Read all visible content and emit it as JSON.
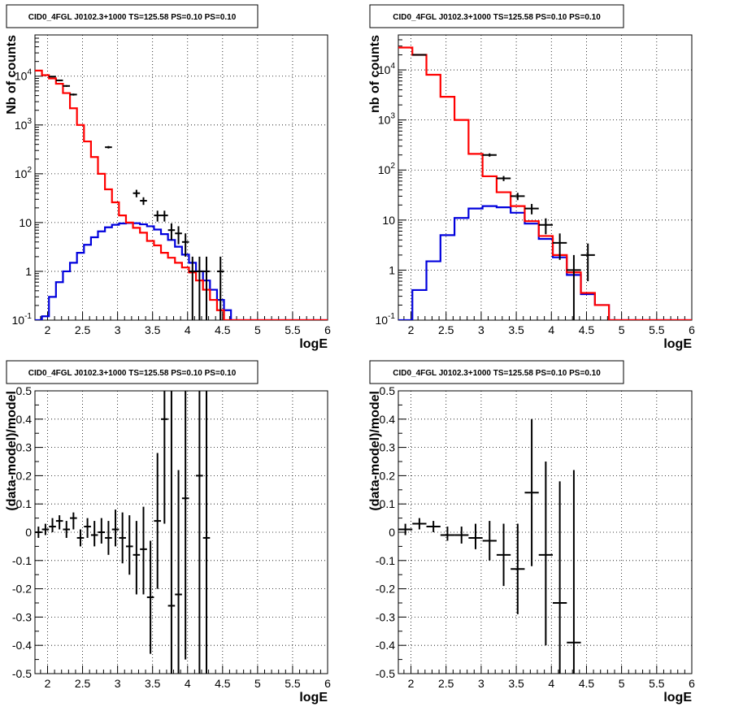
{
  "chart_data": [
    {
      "type": "step",
      "title": "CID0_4FGL J0102.3+1000 TS=125.58 PS=0.10 PS=0.10",
      "xlabel": "logE",
      "ylabel": "Nb of counts",
      "xlim": [
        1.82,
        6.0
      ],
      "ylim": [
        0.1,
        70000
      ],
      "yscale": "log",
      "grid": true,
      "x_ticks": [
        "2",
        "2.5",
        "3",
        "3.5",
        "4",
        "4.5",
        "5",
        "5.5",
        "6"
      ],
      "y_ticks": [
        [
          "0.1",
          0.1,
          "10",
          "-1"
        ],
        [
          "1",
          1
        ],
        [
          "10",
          10
        ],
        [
          "10",
          100,
          "10",
          "2"
        ],
        [
          "10",
          1000,
          "10",
          "3"
        ],
        [
          "10",
          10000,
          "10",
          "4"
        ]
      ],
      "bin_edges": [
        1.82,
        1.92,
        2.02,
        2.12,
        2.22,
        2.32,
        2.42,
        2.52,
        2.62,
        2.72,
        2.82,
        2.92,
        3.02,
        3.12,
        3.22,
        3.32,
        3.42,
        3.52,
        3.62,
        3.72,
        3.82,
        3.92,
        4.02,
        4.12,
        4.22,
        4.32,
        4.42,
        4.52,
        4.62,
        4.72,
        4.82,
        4.92,
        5.02,
        5.12,
        5.22,
        5.32,
        5.42,
        5.52,
        5.62,
        5.72,
        5.82,
        5.92,
        6.0
      ],
      "series": [
        {
          "color": "#ff0000",
          "values": [
            13000,
            10500,
            9000,
            7000,
            4500,
            2200,
            1000,
            460,
            220,
            100,
            48,
            26,
            14,
            10,
            7.8,
            6.2,
            4.2,
            3.4,
            2.4,
            1.9,
            1.5,
            1.2,
            0.95,
            0.65,
            0.42,
            0.26,
            0.16,
            0.1,
            0.08,
            0.08,
            0.08,
            0.08,
            0.08,
            0.08,
            0.08,
            0.08,
            0.08,
            0.08,
            0.08,
            0.08,
            0.08,
            0.08
          ]
        },
        {
          "color": "#0000dd",
          "values": [
            0.08,
            0.12,
            0.3,
            0.6,
            1.0,
            1.5,
            2.4,
            3.5,
            5.0,
            6.6,
            8.0,
            9.0,
            9.6,
            9.8,
            9.7,
            9.2,
            8.4,
            7.2,
            5.8,
            4.4,
            3.2,
            2.2,
            1.5,
            1.0,
            0.65,
            0.42,
            0.26,
            0.16,
            0.1,
            0.08,
            0.08,
            0.08,
            0.08,
            0.08,
            0.08,
            0.08,
            0.08,
            0.08,
            0.08,
            0.08,
            0.08,
            0.08
          ]
        }
      ],
      "points": [
        {
          "x": 2.07,
          "y": 9800,
          "xerr": 0.05,
          "ylo": 9500,
          "yhi": 10100
        },
        {
          "x": 2.17,
          "y": 8200,
          "xerr": 0.05,
          "ylo": 7900,
          "yhi": 8500
        },
        {
          "x": 2.27,
          "y": 6300,
          "xerr": 0.05,
          "ylo": 6050,
          "yhi": 6550
        },
        {
          "x": 2.37,
          "y": 4200,
          "xerr": 0.05,
          "ylo": 4000,
          "yhi": 4400
        },
        {
          "x": 2.87,
          "y": 350,
          "xerr": 0.05,
          "ylo": 330,
          "yhi": 370
        },
        {
          "x": 3.27,
          "y": 40,
          "xerr": 0.05,
          "ylo": 33,
          "yhi": 47
        },
        {
          "x": 3.37,
          "y": 28,
          "xerr": 0.05,
          "ylo": 23,
          "yhi": 33
        },
        {
          "x": 3.57,
          "y": 14,
          "xerr": 0.05,
          "ylo": 10.5,
          "yhi": 17.5
        },
        {
          "x": 3.67,
          "y": 14,
          "xerr": 0.05,
          "ylo": 10.5,
          "yhi": 17.5
        },
        {
          "x": 3.77,
          "y": 7,
          "xerr": 0.05,
          "ylo": 4.4,
          "yhi": 9.6
        },
        {
          "x": 3.87,
          "y": 6,
          "xerr": 0.05,
          "ylo": 3.6,
          "yhi": 8.4
        },
        {
          "x": 3.97,
          "y": 4,
          "xerr": 0.05,
          "ylo": 2.0,
          "yhi": 6.0
        },
        {
          "x": 4.07,
          "y": 1,
          "xerr": 0.05,
          "ylo": 0.01,
          "yhi": 2.0
        },
        {
          "x": 4.17,
          "y": 1,
          "xerr": 0.05,
          "ylo": 0.01,
          "yhi": 2.0
        },
        {
          "x": 4.27,
          "y": 1,
          "xerr": 0.05,
          "ylo": 0.01,
          "yhi": 2.0
        },
        {
          "x": 4.47,
          "y": 1,
          "xerr": 0.05,
          "ylo": 0.01,
          "yhi": 2.0
        }
      ]
    },
    {
      "type": "step",
      "title": "CID0_4FGL J0102.3+1000 TS=125.58 PS=0.10 PS=0.10",
      "xlabel": "logE",
      "ylabel": "nb of counts",
      "xlim": [
        1.82,
        6.0
      ],
      "ylim": [
        0.1,
        50000
      ],
      "yscale": "log",
      "grid": true,
      "x_ticks": [
        "2",
        "2.5",
        "3",
        "3.5",
        "4",
        "4.5",
        "5",
        "5.5",
        "6"
      ],
      "y_ticks": [
        [
          "0.1",
          0.1,
          "10",
          "-1"
        ],
        [
          "1",
          1
        ],
        [
          "10",
          10
        ],
        [
          "10",
          100,
          "10",
          "2"
        ],
        [
          "10",
          1000,
          "10",
          "3"
        ],
        [
          "10",
          10000,
          "10",
          "4"
        ]
      ],
      "bin_edges": [
        1.82,
        2.02,
        2.22,
        2.42,
        2.62,
        2.82,
        3.02,
        3.22,
        3.42,
        3.62,
        3.82,
        4.02,
        4.22,
        4.42,
        4.62,
        4.82,
        5.02,
        5.22,
        5.42,
        5.62,
        5.82,
        6.0
      ],
      "series": [
        {
          "color": "#ff0000",
          "values": [
            28000,
            20000,
            8000,
            2900,
            1000,
            210,
            75,
            36,
            19,
            9.5,
            4.8,
            2.0,
            0.9,
            0.35,
            0.2,
            0.08,
            0.08,
            0.08,
            0.08,
            0.08,
            0.08
          ]
        },
        {
          "color": "#0000dd",
          "values": [
            0.08,
            0.4,
            1.5,
            5.0,
            11,
            17,
            19,
            18,
            14,
            8.5,
            4.2,
            1.8,
            0.8,
            0.33,
            0.2,
            0.08,
            0.08,
            0.08,
            0.08,
            0.08,
            0.08
          ]
        }
      ],
      "points": [
        {
          "x": 2.12,
          "y": 20000,
          "xerr": 0.1,
          "ylo": 19500,
          "yhi": 20500
        },
        {
          "x": 3.12,
          "y": 200,
          "xerr": 0.1,
          "ylo": 185,
          "yhi": 215
        },
        {
          "x": 3.32,
          "y": 68,
          "xerr": 0.1,
          "ylo": 60,
          "yhi": 76
        },
        {
          "x": 3.52,
          "y": 30,
          "xerr": 0.1,
          "ylo": 25,
          "yhi": 35
        },
        {
          "x": 3.72,
          "y": 17,
          "xerr": 0.1,
          "ylo": 13,
          "yhi": 21
        },
        {
          "x": 3.92,
          "y": 8,
          "xerr": 0.1,
          "ylo": 5.2,
          "yhi": 10.8
        },
        {
          "x": 4.12,
          "y": 3.5,
          "xerr": 0.1,
          "ylo": 1.6,
          "yhi": 5.4
        },
        {
          "x": 4.32,
          "y": 1,
          "xerr": 0.1,
          "ylo": 0.01,
          "yhi": 2.0
        },
        {
          "x": 4.52,
          "y": 2,
          "xerr": 0.1,
          "ylo": 0.6,
          "yhi": 3.4
        }
      ]
    },
    {
      "type": "errorbar",
      "title": "CID0_4FGL J0102.3+1000 TS=125.58 PS=0.10 PS=0.10",
      "xlabel": "logE",
      "ylabel": "(data-model)/model",
      "xlim": [
        1.82,
        6.0
      ],
      "ylim": [
        -0.5,
        0.5
      ],
      "yscale": "linear",
      "grid": true,
      "x_ticks": [
        "2",
        "2.5",
        "3",
        "3.5",
        "4",
        "4.5",
        "5",
        "5.5",
        "6"
      ],
      "y_ticks": [
        "-0.5",
        "-0.4",
        "-0.3",
        "-0.2",
        "-0.1",
        "0",
        "0.1",
        "0.2",
        "0.3",
        "0.4",
        "0.5"
      ],
      "points": [
        {
          "x": 1.87,
          "y": 0.0,
          "xerr": 0.05,
          "ylo": -0.02,
          "yhi": 0.02
        },
        {
          "x": 1.97,
          "y": 0.01,
          "xerr": 0.05,
          "ylo": -0.01,
          "yhi": 0.03
        },
        {
          "x": 2.07,
          "y": 0.02,
          "xerr": 0.05,
          "ylo": 0.0,
          "yhi": 0.05
        },
        {
          "x": 2.17,
          "y": 0.04,
          "xerr": 0.05,
          "ylo": 0.01,
          "yhi": 0.06
        },
        {
          "x": 2.27,
          "y": 0.01,
          "xerr": 0.05,
          "ylo": -0.02,
          "yhi": 0.04
        },
        {
          "x": 2.37,
          "y": 0.05,
          "xerr": 0.05,
          "ylo": 0.01,
          "yhi": 0.07
        },
        {
          "x": 2.47,
          "y": -0.02,
          "xerr": 0.05,
          "ylo": -0.05,
          "yhi": 0.01
        },
        {
          "x": 2.57,
          "y": 0.02,
          "xerr": 0.05,
          "ylo": -0.02,
          "yhi": 0.05
        },
        {
          "x": 2.67,
          "y": -0.01,
          "xerr": 0.05,
          "ylo": -0.05,
          "yhi": 0.04
        },
        {
          "x": 2.77,
          "y": 0.0,
          "xerr": 0.05,
          "ylo": -0.04,
          "yhi": 0.05
        },
        {
          "x": 2.87,
          "y": -0.02,
          "xerr": 0.05,
          "ylo": -0.08,
          "yhi": 0.04
        },
        {
          "x": 2.97,
          "y": 0.01,
          "xerr": 0.05,
          "ylo": -0.05,
          "yhi": 0.08
        },
        {
          "x": 3.07,
          "y": -0.02,
          "xerr": 0.05,
          "ylo": -0.11,
          "yhi": 0.07
        },
        {
          "x": 3.17,
          "y": -0.05,
          "xerr": 0.05,
          "ylo": -0.15,
          "yhi": 0.06
        },
        {
          "x": 3.27,
          "y": -0.08,
          "xerr": 0.05,
          "ylo": -0.22,
          "yhi": 0.04
        },
        {
          "x": 3.37,
          "y": -0.06,
          "xerr": 0.05,
          "ylo": -0.22,
          "yhi": 0.09
        },
        {
          "x": 3.47,
          "y": -0.23,
          "xerr": 0.05,
          "ylo": -0.43,
          "yhi": -0.03
        },
        {
          "x": 3.57,
          "y": 0.04,
          "xerr": 0.05,
          "ylo": -0.2,
          "yhi": 0.28
        },
        {
          "x": 3.67,
          "y": 0.4,
          "xerr": 0.05,
          "ylo": 0.03,
          "yhi": 0.5
        },
        {
          "x": 3.77,
          "y": -0.26,
          "xerr": 0.05,
          "ylo": -0.5,
          "yhi": 0.5
        },
        {
          "x": 3.87,
          "y": -0.22,
          "xerr": 0.05,
          "ylo": -0.5,
          "yhi": 0.22
        },
        {
          "x": 3.97,
          "y": 0.12,
          "xerr": 0.05,
          "ylo": -0.45,
          "yhi": 0.5
        },
        {
          "x": 4.17,
          "y": 0.2,
          "xerr": 0.05,
          "ylo": -0.5,
          "yhi": 0.5
        },
        {
          "x": 4.27,
          "y": -0.02,
          "xerr": 0.05,
          "ylo": -0.5,
          "yhi": 0.5
        }
      ]
    },
    {
      "type": "errorbar",
      "title": "CID0_4FGL J0102.3+1000 TS=125.58 PS=0.10 PS=0.10",
      "xlabel": "logE",
      "ylabel": "(data-model)/model",
      "xlim": [
        1.82,
        6.0
      ],
      "ylim": [
        -0.5,
        0.5
      ],
      "yscale": "linear",
      "grid": true,
      "x_ticks": [
        "2",
        "2.5",
        "3",
        "3.5",
        "4",
        "4.5",
        "5",
        "5.5",
        "6"
      ],
      "y_ticks": [
        "-0.5",
        "-0.4",
        "-0.3",
        "-0.2",
        "-0.1",
        "0",
        "0.1",
        "0.2",
        "0.3",
        "0.4",
        "0.5"
      ],
      "points": [
        {
          "x": 1.92,
          "y": 0.01,
          "xerr": 0.1,
          "ylo": -0.01,
          "yhi": 0.03
        },
        {
          "x": 2.12,
          "y": 0.03,
          "xerr": 0.1,
          "ylo": 0.01,
          "yhi": 0.05
        },
        {
          "x": 2.32,
          "y": 0.02,
          "xerr": 0.1,
          "ylo": 0.0,
          "yhi": 0.04
        },
        {
          "x": 2.52,
          "y": -0.01,
          "xerr": 0.1,
          "ylo": -0.03,
          "yhi": 0.02
        },
        {
          "x": 2.72,
          "y": -0.01,
          "xerr": 0.1,
          "ylo": -0.04,
          "yhi": 0.02
        },
        {
          "x": 2.92,
          "y": -0.02,
          "xerr": 0.1,
          "ylo": -0.06,
          "yhi": 0.03
        },
        {
          "x": 3.12,
          "y": -0.03,
          "xerr": 0.1,
          "ylo": -0.1,
          "yhi": 0.04
        },
        {
          "x": 3.32,
          "y": -0.08,
          "xerr": 0.1,
          "ylo": -0.19,
          "yhi": 0.03
        },
        {
          "x": 3.52,
          "y": -0.13,
          "xerr": 0.1,
          "ylo": -0.29,
          "yhi": 0.03
        },
        {
          "x": 3.72,
          "y": 0.14,
          "xerr": 0.1,
          "ylo": -0.12,
          "yhi": 0.4
        },
        {
          "x": 3.92,
          "y": -0.08,
          "xerr": 0.1,
          "ylo": -0.4,
          "yhi": 0.25
        },
        {
          "x": 4.12,
          "y": -0.25,
          "xerr": 0.1,
          "ylo": -0.5,
          "yhi": 0.18
        },
        {
          "x": 4.32,
          "y": -0.39,
          "xerr": 0.1,
          "ylo": -0.5,
          "yhi": 0.22
        }
      ]
    }
  ]
}
